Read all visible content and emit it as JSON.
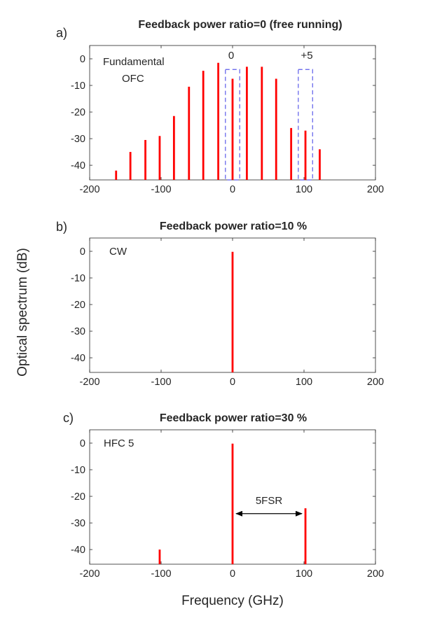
{
  "figure": {
    "ylabel": "Optical spectrum (dB)",
    "xlabel": "Frequency (GHz)"
  },
  "colors": {
    "spectrum": "#ff0000",
    "highlight_box": "#5b5bea",
    "axis": "#262626"
  },
  "chart_data": [
    {
      "type": "bar",
      "panel_label": "a)",
      "title": "Feedback power ratio=0 (free running)",
      "xlim": [
        -200,
        200
      ],
      "ylim": [
        -45.5,
        5
      ],
      "xticks": [
        -200,
        -100,
        0,
        100,
        200
      ],
      "yticks": [
        0,
        -10,
        -20,
        -30,
        -40
      ],
      "grid": false,
      "series": [
        {
          "x": [
            -163,
            -143,
            -122,
            -102,
            -82,
            -61,
            -41,
            -20,
            0,
            20,
            41,
            61,
            82,
            102,
            122
          ],
          "y": [
            -42,
            -35,
            -30.5,
            -29,
            -21.5,
            -10.5,
            -4.5,
            -1.5,
            -7.5,
            -3,
            -3,
            -7.5,
            -26,
            -27,
            -34
          ]
        }
      ],
      "annotations": [
        {
          "text": "Fundamental",
          "x": -180,
          "y": -1
        },
        {
          "text": "OFC",
          "x": -153,
          "y": -8
        },
        {
          "text": "0",
          "x": -2,
          "y": 3.5
        },
        {
          "text": "+5",
          "x": 105,
          "y": 3.5
        }
      ],
      "highlight_boxes": [
        {
          "label": "0",
          "x_range": [
            -10,
            10
          ],
          "y_range": [
            -45.5,
            -4
          ]
        },
        {
          "label": "+5",
          "x_range": [
            92,
            112
          ],
          "y_range": [
            -45.5,
            -4
          ]
        }
      ]
    },
    {
      "type": "bar",
      "panel_label": "b)",
      "title": "Feedback power ratio=10 %",
      "xlim": [
        -200,
        200
      ],
      "ylim": [
        -45.5,
        5
      ],
      "xticks": [
        -200,
        -100,
        0,
        100,
        200
      ],
      "yticks": [
        0,
        -10,
        -20,
        -30,
        -40
      ],
      "grid": false,
      "series": [
        {
          "x": [
            0
          ],
          "y": [
            -0.2
          ]
        }
      ],
      "annotations": [
        {
          "text": "CW",
          "x": -175,
          "y": 0
        }
      ]
    },
    {
      "type": "bar",
      "panel_label": "c)",
      "title": "Feedback power ratio=30 %",
      "xlim": [
        -200,
        200
      ],
      "ylim": [
        -45.5,
        5
      ],
      "xticks": [
        -200,
        -100,
        0,
        100,
        200
      ],
      "yticks": [
        0,
        -10,
        -20,
        -30,
        -40
      ],
      "grid": false,
      "series": [
        {
          "x": [
            -102,
            0,
            102
          ],
          "y": [
            -40,
            -0.2,
            -24.5
          ]
        }
      ],
      "annotations": [
        {
          "text": "HFC 5",
          "x": -180,
          "y": 0
        },
        {
          "text": "5FSR",
          "x": 50,
          "y": -21
        }
      ],
      "arrows": [
        {
          "label": "5FSR",
          "from_x": 5,
          "to_x": 97,
          "y": -26.5
        }
      ]
    }
  ]
}
